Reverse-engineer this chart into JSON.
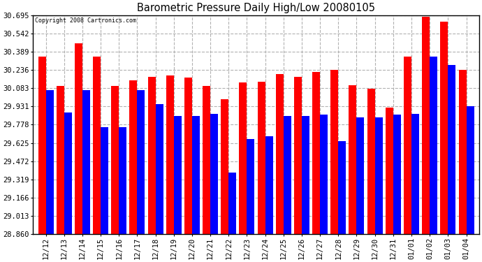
{
  "title": "Barometric Pressure Daily High/Low 20080105",
  "copyright": "Copyright 2008 Cartronics.com",
  "ylim": [
    28.86,
    30.695
  ],
  "yticks": [
    28.86,
    29.013,
    29.166,
    29.319,
    29.472,
    29.625,
    29.778,
    29.931,
    30.083,
    30.236,
    30.389,
    30.542,
    30.695
  ],
  "dates": [
    "12/12",
    "12/13",
    "12/14",
    "12/15",
    "12/16",
    "12/17",
    "12/18",
    "12/19",
    "12/20",
    "12/21",
    "12/22",
    "12/23",
    "12/24",
    "12/25",
    "12/26",
    "12/27",
    "12/28",
    "12/29",
    "12/30",
    "12/31",
    "01/01",
    "01/02",
    "01/03",
    "01/04"
  ],
  "highs": [
    30.35,
    30.1,
    30.46,
    30.35,
    30.1,
    30.15,
    30.18,
    30.19,
    30.17,
    30.1,
    29.99,
    30.13,
    30.14,
    30.2,
    30.18,
    30.22,
    30.24,
    30.11,
    30.08,
    29.92,
    30.35,
    30.68,
    30.64,
    30.24
  ],
  "lows": [
    30.07,
    29.88,
    30.07,
    29.76,
    29.76,
    30.07,
    29.95,
    29.85,
    29.85,
    29.87,
    29.38,
    29.66,
    29.68,
    29.85,
    29.85,
    29.86,
    29.64,
    29.84,
    29.84,
    29.86,
    29.87,
    30.35,
    30.28,
    29.93
  ],
  "high_color": "#FF0000",
  "low_color": "#0000FF",
  "bg_color": "#FFFFFF",
  "plot_bg_color": "#FFFFFF",
  "grid_color": "#AAAAAA",
  "bar_width": 0.42
}
